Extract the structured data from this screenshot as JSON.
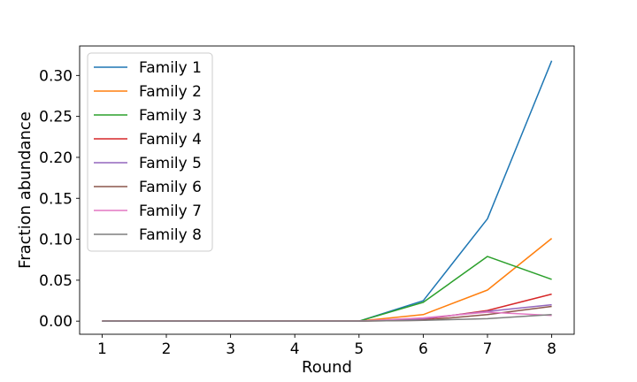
{
  "chart_data": {
    "type": "line",
    "title": "",
    "xlabel": "Round",
    "ylabel": "Fraction abundance",
    "x": [
      1,
      2,
      3,
      4,
      5,
      6,
      7,
      8
    ],
    "xticks": [
      "1",
      "2",
      "3",
      "4",
      "5",
      "6",
      "7",
      "8"
    ],
    "yticks": [
      "0.00",
      "0.05",
      "0.10",
      "0.15",
      "0.20",
      "0.25",
      "0.30"
    ],
    "xlim": [
      0.65,
      8.35
    ],
    "ylim": [
      -0.016,
      0.336
    ],
    "grid": false,
    "legend_position": "upper-left",
    "series": [
      {
        "name": "Family 1",
        "color": "#1f77b4",
        "values": [
          0,
          0,
          0,
          0,
          0,
          0.025,
          0.125,
          0.318
        ]
      },
      {
        "name": "Family 2",
        "color": "#ff7f0e",
        "values": [
          0,
          0,
          0,
          0,
          0,
          0.008,
          0.038,
          0.101
        ]
      },
      {
        "name": "Family 3",
        "color": "#2ca02c",
        "values": [
          0,
          0,
          0,
          0,
          0,
          0.023,
          0.079,
          0.051
        ]
      },
      {
        "name": "Family 4",
        "color": "#d62728",
        "values": [
          0,
          0,
          0,
          0,
          0,
          0.002,
          0.013,
          0.033
        ]
      },
      {
        "name": "Family 5",
        "color": "#9467bd",
        "values": [
          0,
          0,
          0,
          0,
          0,
          0.003,
          0.012,
          0.02
        ]
      },
      {
        "name": "Family 6",
        "color": "#8c564b",
        "values": [
          0,
          0,
          0,
          0,
          0,
          0.001,
          0.008,
          0.018
        ]
      },
      {
        "name": "Family 7",
        "color": "#e377c2",
        "values": [
          0,
          0,
          0,
          0,
          0,
          0.004,
          0.011,
          0.007
        ]
      },
      {
        "name": "Family 8",
        "color": "#7f7f7f",
        "values": [
          0,
          0,
          0,
          0,
          0,
          0.001,
          0.003,
          0.008
        ]
      }
    ]
  }
}
